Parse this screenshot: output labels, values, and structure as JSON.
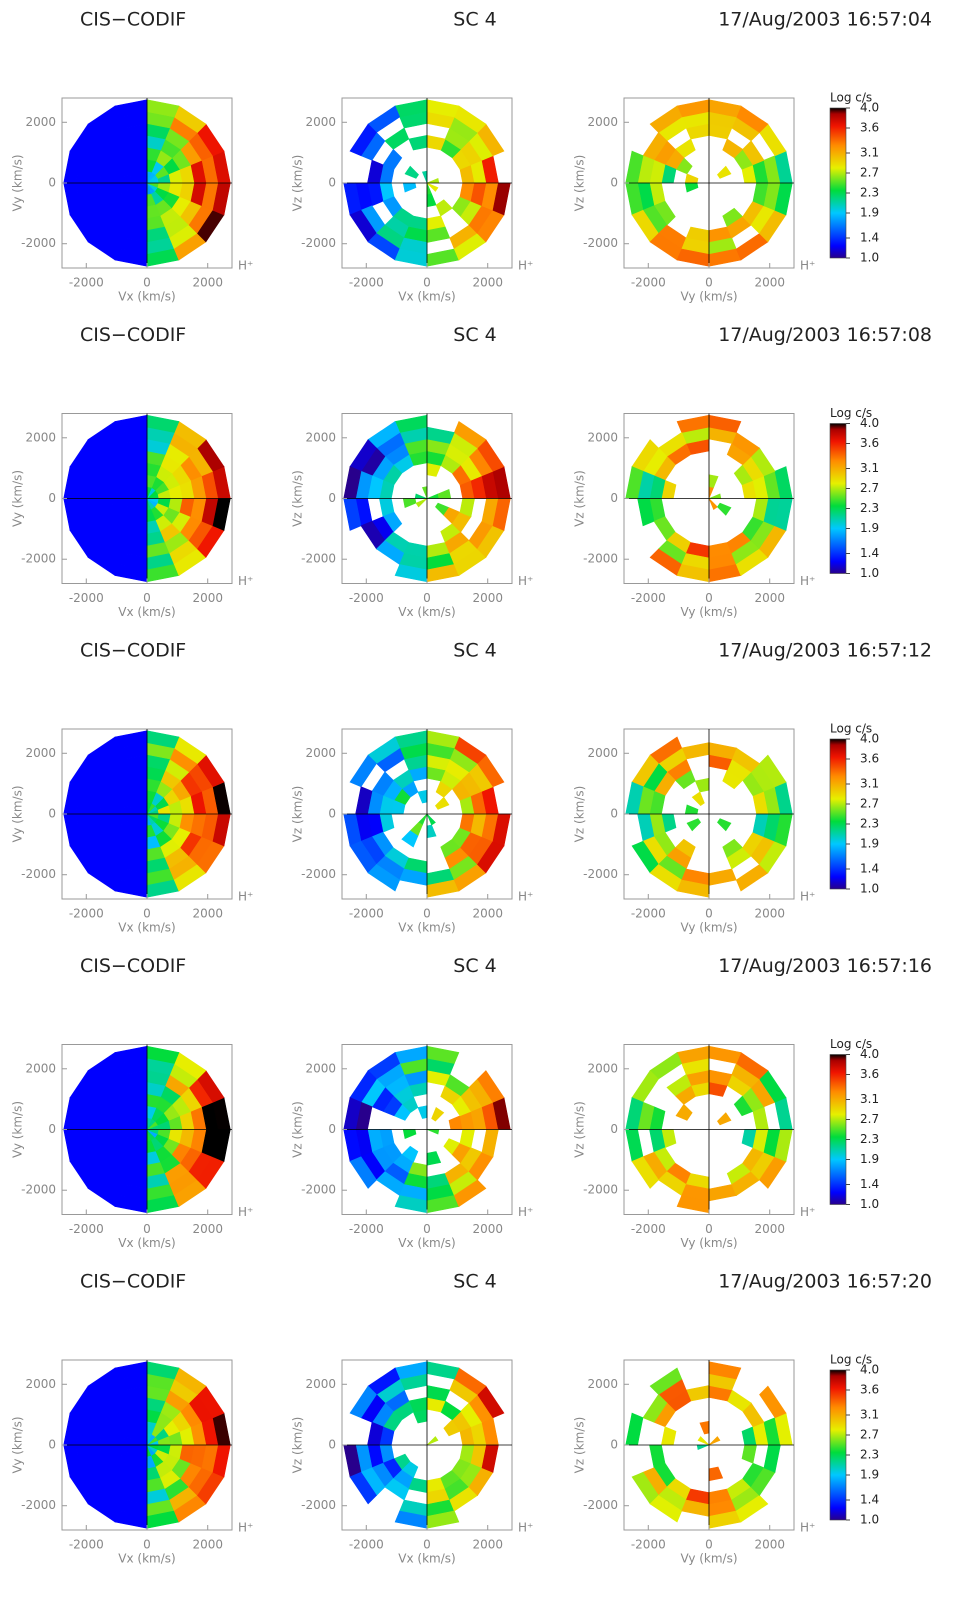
{
  "chart_data": [
    {
      "type": "heatmap",
      "instrument": "CIS−CODIF",
      "spacecraft": "SC 4",
      "time": "17/Aug/2003 16:57:04",
      "species": "H⁺",
      "colorbar": {
        "label": "Log c/s",
        "clim": [
          1,
          4
        ],
        "ticks": [
          {
            "value": 1,
            "label": "1.0"
          },
          1.4,
          1.9,
          2.3,
          2.7,
          3.1,
          3.6,
          {
            "value": 4,
            "label": "4.0"
          }
        ]
      },
      "panels": [
        {
          "xlabel": "Vx (km/s)",
          "ylabel": "Vy (km/s)",
          "xlim": [
            -2800,
            2800
          ],
          "ylim": [
            -2800,
            2800
          ],
          "xticks": [
            -2000,
            0,
            2000
          ],
          "yticks": [
            -2000,
            0,
            2000
          ]
        },
        {
          "xlabel": "Vx (km/s)",
          "ylabel": "Vz (km/s)",
          "xlim": [
            -2800,
            2800
          ],
          "ylim": [
            -2800,
            2800
          ],
          "xticks": [
            -2000,
            0,
            2000
          ],
          "yticks": [
            -2000,
            0,
            2000
          ]
        },
        {
          "xlabel": "Vy (km/s)",
          "ylabel": "Vz (km/s)",
          "xlim": [
            -2800,
            2800
          ],
          "ylim": [
            -2800,
            2800
          ],
          "xticks": [
            -2000,
            0,
            2000
          ],
          "yticks": [
            -2000,
            0,
            2000
          ]
        }
      ]
    },
    {
      "type": "heatmap",
      "instrument": "CIS−CODIF",
      "spacecraft": "SC 4",
      "time": "17/Aug/2003 16:57:08",
      "species": "H⁺",
      "colorbar": {
        "label": "Log c/s",
        "clim": [
          1,
          4
        ],
        "ticks": [
          {
            "value": 1,
            "label": "1.0"
          },
          1.4,
          1.9,
          2.3,
          2.7,
          3.1,
          3.6,
          {
            "value": 4,
            "label": "4.0"
          }
        ]
      },
      "panels": [
        {
          "xlabel": "Vx (km/s)",
          "ylabel": "Vy (km/s)",
          "xlim": [
            -2800,
            2800
          ],
          "ylim": [
            -2800,
            2800
          ],
          "xticks": [
            -2000,
            0,
            2000
          ],
          "yticks": [
            -2000,
            0,
            2000
          ]
        },
        {
          "xlabel": "Vx (km/s)",
          "ylabel": "Vz (km/s)",
          "xlim": [
            -2800,
            2800
          ],
          "ylim": [
            -2800,
            2800
          ],
          "xticks": [
            -2000,
            0,
            2000
          ],
          "yticks": [
            -2000,
            0,
            2000
          ]
        },
        {
          "xlabel": "Vy (km/s)",
          "ylabel": "Vz (km/s)",
          "xlim": [
            -2800,
            2800
          ],
          "ylim": [
            -2800,
            2800
          ],
          "xticks": [
            -2000,
            0,
            2000
          ],
          "yticks": [
            -2000,
            0,
            2000
          ]
        }
      ]
    },
    {
      "type": "heatmap",
      "instrument": "CIS−CODIF",
      "spacecraft": "SC 4",
      "time": "17/Aug/2003 16:57:12",
      "species": "H⁺",
      "colorbar": {
        "label": "Log c/s",
        "clim": [
          1,
          4
        ],
        "ticks": [
          {
            "value": 1,
            "label": "1.0"
          },
          1.4,
          1.9,
          2.3,
          2.7,
          3.1,
          3.6,
          {
            "value": 4,
            "label": "4.0"
          }
        ]
      },
      "panels": [
        {
          "xlabel": "Vx (km/s)",
          "ylabel": "Vy (km/s)",
          "xlim": [
            -2800,
            2800
          ],
          "ylim": [
            -2800,
            2800
          ],
          "xticks": [
            -2000,
            0,
            2000
          ],
          "yticks": [
            -2000,
            0,
            2000
          ]
        },
        {
          "xlabel": "Vx (km/s)",
          "ylabel": "Vz (km/s)",
          "xlim": [
            -2800,
            2800
          ],
          "ylim": [
            -2800,
            2800
          ],
          "xticks": [
            -2000,
            0,
            2000
          ],
          "yticks": [
            -2000,
            0,
            2000
          ]
        },
        {
          "xlabel": "Vy (km/s)",
          "ylabel": "Vz (km/s)",
          "xlim": [
            -2800,
            2800
          ],
          "ylim": [
            -2800,
            2800
          ],
          "xticks": [
            -2000,
            0,
            2000
          ],
          "yticks": [
            -2000,
            0,
            2000
          ]
        }
      ]
    },
    {
      "type": "heatmap",
      "instrument": "CIS−CODIF",
      "spacecraft": "SC 4",
      "time": "17/Aug/2003 16:57:16",
      "species": "H⁺",
      "colorbar": {
        "label": "Log c/s",
        "clim": [
          1,
          4
        ],
        "ticks": [
          {
            "value": 1,
            "label": "1.0"
          },
          1.4,
          1.9,
          2.3,
          2.7,
          3.1,
          3.6,
          {
            "value": 4,
            "label": "4.0"
          }
        ]
      },
      "panels": [
        {
          "xlabel": "Vx (km/s)",
          "ylabel": "Vy (km/s)",
          "xlim": [
            -2800,
            2800
          ],
          "ylim": [
            -2800,
            2800
          ],
          "xticks": [
            -2000,
            0,
            2000
          ],
          "yticks": [
            -2000,
            0,
            2000
          ]
        },
        {
          "xlabel": "Vx (km/s)",
          "ylabel": "Vz (km/s)",
          "xlim": [
            -2800,
            2800
          ],
          "ylim": [
            -2800,
            2800
          ],
          "xticks": [
            -2000,
            0,
            2000
          ],
          "yticks": [
            -2000,
            0,
            2000
          ]
        },
        {
          "xlabel": "Vy (km/s)",
          "ylabel": "Vz (km/s)",
          "xlim": [
            -2800,
            2800
          ],
          "ylim": [
            -2800,
            2800
          ],
          "xticks": [
            -2000,
            0,
            2000
          ],
          "yticks": [
            -2000,
            0,
            2000
          ]
        }
      ]
    },
    {
      "type": "heatmap",
      "instrument": "CIS−CODIF",
      "spacecraft": "SC 4",
      "time": "17/Aug/2003 16:57:20",
      "species": "H⁺",
      "colorbar": {
        "label": "Log c/s",
        "clim": [
          1,
          4
        ],
        "ticks": [
          {
            "value": 1,
            "label": "1.0"
          },
          1.4,
          1.9,
          2.3,
          2.7,
          3.1,
          3.6,
          {
            "value": 4,
            "label": "4.0"
          }
        ]
      },
      "panels": [
        {
          "xlabel": "Vx (km/s)",
          "ylabel": "Vy (km/s)",
          "xlim": [
            -2800,
            2800
          ],
          "ylim": [
            -2800,
            2800
          ],
          "xticks": [
            -2000,
            0,
            2000
          ],
          "yticks": [
            -2000,
            0,
            2000
          ]
        },
        {
          "xlabel": "Vx (km/s)",
          "ylabel": "Vz (km/s)",
          "xlim": [
            -2800,
            2800
          ],
          "ylim": [
            -2800,
            2800
          ],
          "xticks": [
            -2000,
            0,
            2000
          ],
          "yticks": [
            -2000,
            0,
            2000
          ]
        },
        {
          "xlabel": "Vy (km/s)",
          "ylabel": "Vz (km/s)",
          "xlim": [
            -2800,
            2800
          ],
          "ylim": [
            -2800,
            2800
          ],
          "xticks": [
            -2000,
            0,
            2000
          ],
          "yticks": [
            -2000,
            0,
            2000
          ]
        }
      ]
    }
  ]
}
